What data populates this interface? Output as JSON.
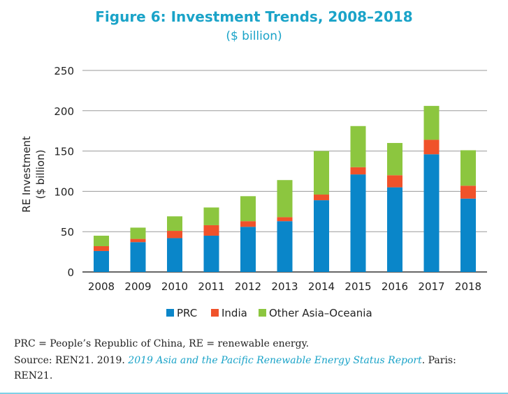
{
  "figure": {
    "title": "Figure 6: Investment Trends, 2008–2018",
    "subtitle": "($ billion)"
  },
  "colors": {
    "title": "#1aa3c8",
    "prc": "#0a86c9",
    "india": "#f0522a",
    "other": "#8cc63f",
    "grid": "#9a9a9a",
    "axis": "#333333"
  },
  "chart_data": {
    "type": "bar",
    "stacked": true,
    "categories": [
      "2008",
      "2009",
      "2010",
      "2011",
      "2012",
      "2013",
      "2014",
      "2015",
      "2016",
      "2017",
      "2018"
    ],
    "series": [
      {
        "name": "PRC",
        "color": "#0a86c9",
        "values": [
          26,
          37,
          42,
          45,
          56,
          63,
          89,
          121,
          105,
          146,
          91
        ]
      },
      {
        "name": "India",
        "color": "#f0522a",
        "values": [
          6,
          4,
          9,
          13,
          7,
          5,
          7,
          9,
          15,
          18,
          16
        ]
      },
      {
        "name": "Other Asia–Oceania",
        "color": "#8cc63f",
        "values": [
          13,
          14,
          18,
          22,
          31,
          46,
          54,
          51,
          40,
          42,
          44
        ]
      }
    ],
    "ylabel_line1": "RE Investment",
    "ylabel_line2": "($ billion)",
    "xlabel": "",
    "ylim": [
      0,
      250
    ],
    "yticks": [
      0,
      50,
      100,
      150,
      200,
      250
    ],
    "grid": true,
    "legend_position": "bottom-center"
  },
  "notes": {
    "abbreviations": "PRC = People’s Republic of China, RE = renewable energy.",
    "source_prefix": "Source: REN21. 2019. ",
    "source_title": "2019 Asia and the Pacific Renewable Energy Status Report",
    "source_suffix": ". Paris:",
    "source_end": "REN21."
  }
}
